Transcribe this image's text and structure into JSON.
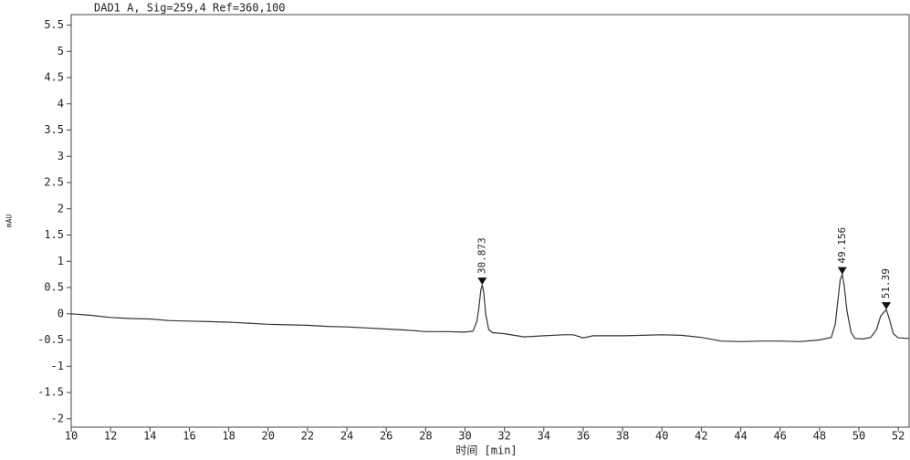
{
  "chart_data": {
    "type": "line",
    "title": "DAD1 A, Sig=259,4 Ref=360,100",
    "x_label": "时间 [min]",
    "y_label": "mAU",
    "xlim": [
      10,
      52.55
    ],
    "ylim": [
      -2.16,
      5.7
    ],
    "xticks": [
      10,
      12,
      14,
      16,
      18,
      20,
      22,
      24,
      26,
      28,
      30,
      32,
      34,
      36,
      38,
      40,
      42,
      44,
      46,
      48,
      50,
      52
    ],
    "yticks": [
      -2,
      -1.5,
      -1,
      -0.5,
      0,
      0.5,
      1,
      1.5,
      2,
      2.5,
      3,
      3.5,
      4,
      4.5,
      5,
      5.5
    ],
    "x": [
      10,
      11,
      12,
      13,
      14,
      15,
      16,
      17,
      18,
      19,
      20,
      21,
      22,
      23,
      24,
      25,
      26,
      27,
      28,
      29,
      30,
      30.4,
      30.6,
      30.7,
      30.8,
      30.873,
      30.95,
      31.05,
      31.2,
      31.4,
      32,
      33,
      34,
      35,
      35.5,
      36,
      36.5,
      37,
      38,
      39,
      40,
      41,
      42,
      43,
      44,
      45,
      46,
      47,
      48,
      48.6,
      48.8,
      48.95,
      49.05,
      49.156,
      49.25,
      49.4,
      49.6,
      49.8,
      50.2,
      50.6,
      50.9,
      51.1,
      51.25,
      51.39,
      51.55,
      51.75,
      52,
      52.55
    ],
    "series": [
      {
        "name": "DAD1 A",
        "color": "#333333",
        "values": [
          0,
          -0.03,
          -0.07,
          -0.09,
          -0.1,
          -0.13,
          -0.14,
          -0.15,
          -0.16,
          -0.18,
          -0.2,
          -0.21,
          -0.22,
          -0.24,
          -0.25,
          -0.27,
          -0.29,
          -0.31,
          -0.34,
          -0.34,
          -0.35,
          -0.33,
          -0.15,
          0.1,
          0.45,
          0.55,
          0.4,
          0.0,
          -0.3,
          -0.36,
          -0.38,
          -0.44,
          -0.42,
          -0.4,
          -0.4,
          -0.46,
          -0.42,
          -0.42,
          -0.42,
          -0.41,
          -0.4,
          -0.41,
          -0.45,
          -0.52,
          -0.53,
          -0.52,
          -0.52,
          -0.53,
          -0.5,
          -0.45,
          -0.2,
          0.3,
          0.65,
          0.75,
          0.55,
          0.05,
          -0.35,
          -0.47,
          -0.48,
          -0.45,
          -0.3,
          -0.05,
          0.02,
          0.08,
          -0.1,
          -0.38,
          -0.46,
          -0.47
        ]
      }
    ],
    "peaks": [
      {
        "x": 30.873,
        "y": 0.55
      },
      {
        "x": 49.156,
        "y": 0.75
      },
      {
        "x": 51.39,
        "y": 0.08
      }
    ]
  }
}
